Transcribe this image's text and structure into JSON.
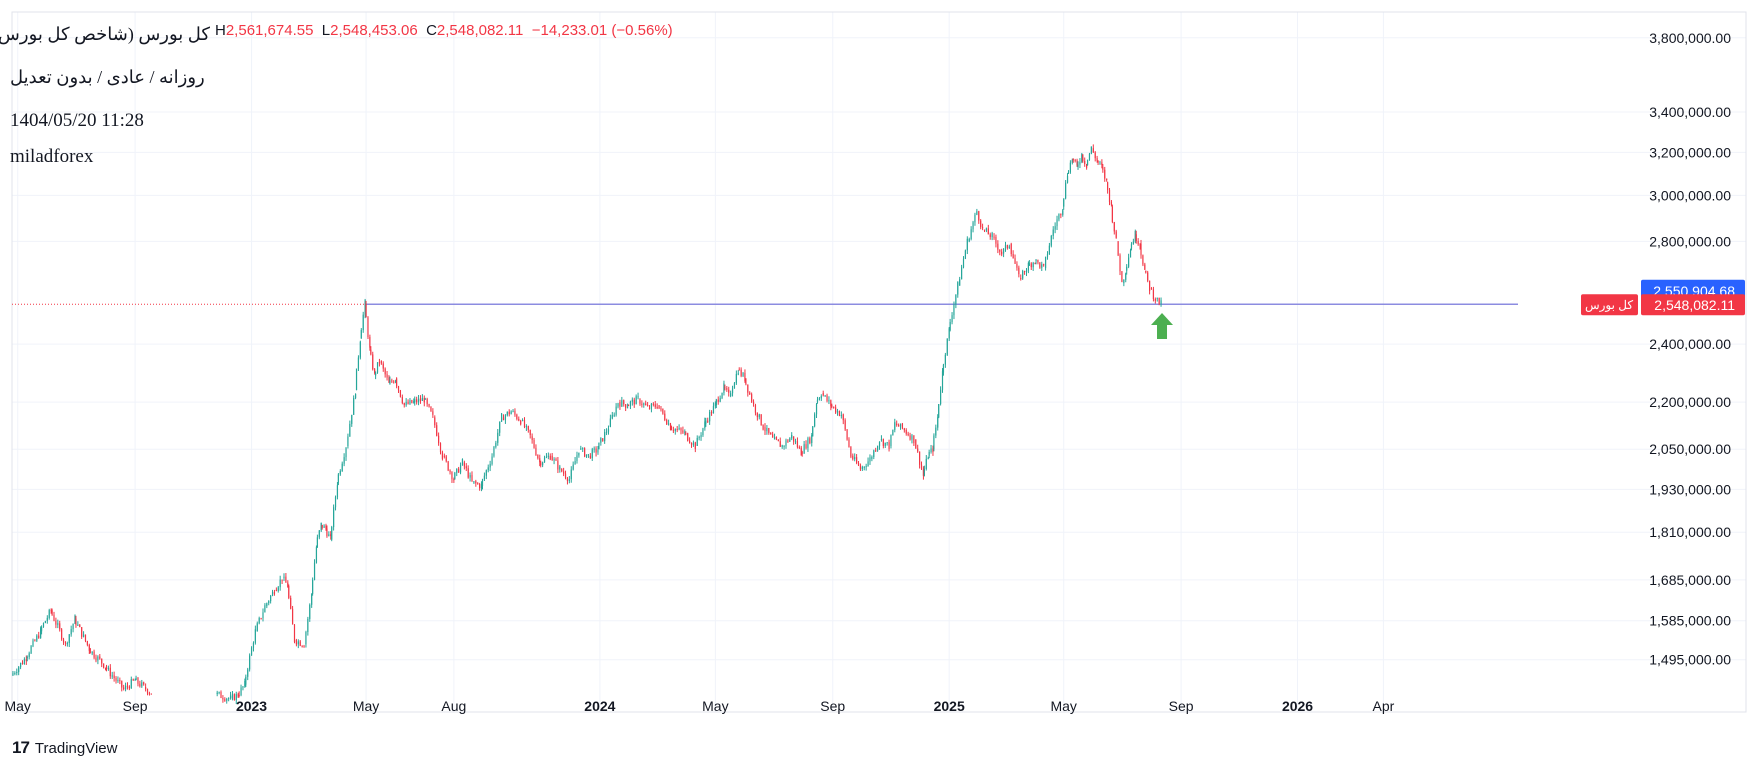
{
  "header": {
    "ohlc": {
      "h_label": "H",
      "h_value": "2,561,674.55",
      "l_label": "L",
      "l_value": "2,548,453.06",
      "c_label": "C",
      "c_value": "2,548,082.11",
      "change": "−14,233.01 (−0.56%)"
    },
    "title": "کل بورس (شاخص کل بورس)",
    "interval": "روزانه / عادی / بدون تعدیل",
    "datetime": "1404/05/20 11:28",
    "author": "miladforex"
  },
  "price_labels": {
    "upper": "2,550,904.68",
    "current": "2,548,082.11",
    "current_symbol": "کل بورس"
  },
  "brand": {
    "name": "TradingView",
    "logo_text": "17"
  },
  "colors": {
    "up": "#26a69a",
    "down": "#f23645",
    "hline": "#8c8ce0",
    "arrow": "#4caf50",
    "label_blue": "#2962ff",
    "label_red": "#f23645"
  },
  "chart_data": {
    "type": "line",
    "title": "",
    "y_scale": "log",
    "ylim": [
      1420000,
      3950000
    ],
    "yticks": [
      {
        "value": 3800000,
        "label": "3,800,000.00"
      },
      {
        "value": 3400000,
        "label": "3,400,000.00"
      },
      {
        "value": 3200000,
        "label": "3,200,000.00"
      },
      {
        "value": 3000000,
        "label": "3,000,000.00"
      },
      {
        "value": 2800000,
        "label": "2,800,000.00"
      },
      {
        "value": 2400000,
        "label": "2,400,000.00"
      },
      {
        "value": 2200000,
        "label": "2,200,000.00"
      },
      {
        "value": 2050000,
        "label": "2,050,000.00"
      },
      {
        "value": 1930000,
        "label": "1,930,000.00"
      },
      {
        "value": 1810000,
        "label": "1,810,000.00"
      },
      {
        "value": 1685000,
        "label": "1,685,000.00"
      },
      {
        "value": 1585000,
        "label": "1,585,000.00"
      },
      {
        "value": 1495000,
        "label": "1,495,000.00"
      }
    ],
    "xlim": [
      "2022-04-25",
      "2026-06-15"
    ],
    "xticks": [
      {
        "date": "2022-05-01",
        "label": "May",
        "bold": false
      },
      {
        "date": "2022-09-01",
        "label": "Sep",
        "bold": false
      },
      {
        "date": "2023-01-01",
        "label": "2023",
        "bold": true
      },
      {
        "date": "2023-05-01",
        "label": "May",
        "bold": false
      },
      {
        "date": "2023-08-01",
        "label": "Aug",
        "bold": false
      },
      {
        "date": "2024-01-01",
        "label": "2024",
        "bold": true
      },
      {
        "date": "2024-05-01",
        "label": "May",
        "bold": false
      },
      {
        "date": "2024-09-01",
        "label": "Sep",
        "bold": false
      },
      {
        "date": "2025-01-01",
        "label": "2025",
        "bold": true
      },
      {
        "date": "2025-05-01",
        "label": "May",
        "bold": false
      },
      {
        "date": "2025-09-01",
        "label": "Sep",
        "bold": false
      },
      {
        "date": "2026-01-01",
        "label": "2026",
        "bold": true
      },
      {
        "date": "2026-04-01",
        "label": "Apr",
        "bold": false
      }
    ],
    "grid": true,
    "horizontal_line": {
      "value": 2548082.11,
      "start": "2023-04-30"
    },
    "marker": {
      "type": "arrow-up",
      "date": "2025-08-12",
      "value": 2470000
    },
    "series": [
      {
        "points": [
          [
            "2022-04-25",
            1460000
          ],
          [
            "2022-05-10",
            1500000
          ],
          [
            "2022-05-25",
            1560000
          ],
          [
            "2022-06-05",
            1610000
          ],
          [
            "2022-06-20",
            1530000
          ],
          [
            "2022-06-30",
            1590000
          ],
          [
            "2022-07-15",
            1520000
          ],
          [
            "2022-08-01",
            1480000
          ],
          [
            "2022-08-20",
            1430000
          ],
          [
            "2022-09-01",
            1450000
          ],
          [
            "2022-09-10",
            1435000
          ],
          [
            "2022-09-18",
            1422000
          ],
          [
            "2022-11-25",
            1420000
          ],
          [
            "2022-12-10",
            1410000
          ],
          [
            "2022-12-18",
            1418000
          ],
          [
            "2022-12-25",
            1440000
          ],
          [
            "2023-01-05",
            1560000
          ],
          [
            "2023-01-15",
            1620000
          ],
          [
            "2023-01-25",
            1660000
          ],
          [
            "2023-02-02",
            1690000
          ],
          [
            "2023-02-08",
            1670000
          ],
          [
            "2023-02-15",
            1540000
          ],
          [
            "2023-02-25",
            1530000
          ],
          [
            "2023-03-05",
            1650000
          ],
          [
            "2023-03-10",
            1770000
          ],
          [
            "2023-03-15",
            1830000
          ],
          [
            "2023-03-20",
            1820000
          ],
          [
            "2023-03-25",
            1790000
          ],
          [
            "2023-04-01",
            1950000
          ],
          [
            "2023-04-10",
            2060000
          ],
          [
            "2023-04-20",
            2240000
          ],
          [
            "2023-04-25",
            2420000
          ],
          [
            "2023-04-30",
            2550000
          ],
          [
            "2023-05-05",
            2380000
          ],
          [
            "2023-05-10",
            2290000
          ],
          [
            "2023-05-15",
            2340000
          ],
          [
            "2023-05-25",
            2260000
          ],
          [
            "2023-06-01",
            2280000
          ],
          [
            "2023-06-10",
            2190000
          ],
          [
            "2023-06-20",
            2200000
          ],
          [
            "2023-07-01",
            2210000
          ],
          [
            "2023-07-10",
            2150000
          ],
          [
            "2023-07-20",
            2030000
          ],
          [
            "2023-08-01",
            1960000
          ],
          [
            "2023-08-10",
            2010000
          ],
          [
            "2023-08-20",
            1950000
          ],
          [
            "2023-08-30",
            1940000
          ],
          [
            "2023-09-10",
            2030000
          ],
          [
            "2023-09-20",
            2150000
          ],
          [
            "2023-09-30",
            2170000
          ],
          [
            "2023-10-10",
            2140000
          ],
          [
            "2023-10-20",
            2090000
          ],
          [
            "2023-10-30",
            2010000
          ],
          [
            "2023-11-10",
            2030000
          ],
          [
            "2023-11-20",
            1990000
          ],
          [
            "2023-11-30",
            1960000
          ],
          [
            "2023-12-10",
            2050000
          ],
          [
            "2023-12-20",
            2030000
          ],
          [
            "2023-12-30",
            2050000
          ],
          [
            "2024-01-10",
            2120000
          ],
          [
            "2024-01-20",
            2200000
          ],
          [
            "2024-01-30",
            2190000
          ],
          [
            "2024-02-10",
            2210000
          ],
          [
            "2024-02-20",
            2180000
          ],
          [
            "2024-03-01",
            2190000
          ],
          [
            "2024-03-15",
            2120000
          ],
          [
            "2024-03-30",
            2100000
          ],
          [
            "2024-04-10",
            2060000
          ],
          [
            "2024-04-20",
            2130000
          ],
          [
            "2024-05-01",
            2190000
          ],
          [
            "2024-05-10",
            2250000
          ],
          [
            "2024-05-15",
            2220000
          ],
          [
            "2024-05-25",
            2310000
          ],
          [
            "2024-06-01",
            2280000
          ],
          [
            "2024-06-10",
            2190000
          ],
          [
            "2024-06-20",
            2120000
          ],
          [
            "2024-06-30",
            2080000
          ],
          [
            "2024-07-10",
            2060000
          ],
          [
            "2024-07-20",
            2090000
          ],
          [
            "2024-07-30",
            2040000
          ],
          [
            "2024-08-10",
            2090000
          ],
          [
            "2024-08-15",
            2200000
          ],
          [
            "2024-08-20",
            2230000
          ],
          [
            "2024-08-30",
            2190000
          ],
          [
            "2024-09-10",
            2160000
          ],
          [
            "2024-09-20",
            2030000
          ],
          [
            "2024-09-30",
            1990000
          ],
          [
            "2024-10-10",
            2020000
          ],
          [
            "2024-10-20",
            2080000
          ],
          [
            "2024-10-30",
            2060000
          ],
          [
            "2024-11-05",
            2130000
          ],
          [
            "2024-11-15",
            2110000
          ],
          [
            "2024-11-25",
            2080000
          ],
          [
            "2024-12-05",
            1970000
          ],
          [
            "2024-12-10",
            2030000
          ],
          [
            "2024-12-15",
            2050000
          ],
          [
            "2024-12-20",
            2150000
          ],
          [
            "2024-12-25",
            2300000
          ],
          [
            "2025-01-01",
            2450000
          ],
          [
            "2025-01-10",
            2620000
          ],
          [
            "2025-01-20",
            2800000
          ],
          [
            "2025-01-30",
            2930000
          ],
          [
            "2025-02-05",
            2850000
          ],
          [
            "2025-02-15",
            2820000
          ],
          [
            "2025-02-25",
            2750000
          ],
          [
            "2025-03-05",
            2790000
          ],
          [
            "2025-03-15",
            2650000
          ],
          [
            "2025-03-25",
            2700000
          ],
          [
            "2025-04-01",
            2720000
          ],
          [
            "2025-04-10",
            2690000
          ],
          [
            "2025-04-20",
            2850000
          ],
          [
            "2025-04-30",
            2950000
          ],
          [
            "2025-05-05",
            3100000
          ],
          [
            "2025-05-10",
            3170000
          ],
          [
            "2025-05-15",
            3130000
          ],
          [
            "2025-05-20",
            3190000
          ],
          [
            "2025-05-25",
            3140000
          ],
          [
            "2025-05-30",
            3220000
          ],
          [
            "2025-06-05",
            3160000
          ],
          [
            "2025-06-10",
            3130000
          ],
          [
            "2025-06-15",
            3060000
          ],
          [
            "2025-06-20",
            2950000
          ],
          [
            "2025-06-25",
            2800000
          ],
          [
            "2025-07-01",
            2630000
          ],
          [
            "2025-07-05",
            2680000
          ],
          [
            "2025-07-10",
            2770000
          ],
          [
            "2025-07-15",
            2830000
          ],
          [
            "2025-07-20",
            2790000
          ],
          [
            "2025-07-25",
            2680000
          ],
          [
            "2025-07-30",
            2610000
          ],
          [
            "2025-08-05",
            2570000
          ],
          [
            "2025-08-11",
            2548082
          ]
        ]
      }
    ]
  }
}
